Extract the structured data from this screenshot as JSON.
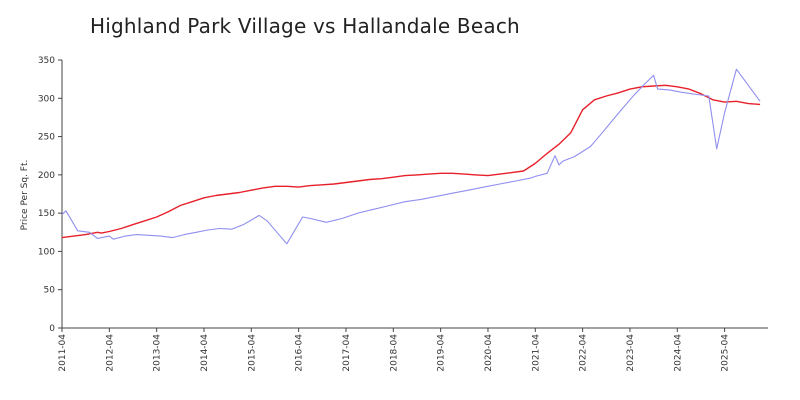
{
  "chart_data": {
    "type": "line",
    "title": "Highland Park Village vs Hallandale Beach",
    "xlabel": "",
    "ylabel": "Price Per Sq. Ft.",
    "ylim": [
      0,
      350
    ],
    "yticks": [
      0,
      50,
      100,
      150,
      200,
      250,
      300,
      350
    ],
    "xlim": [
      "2011-04",
      "2026-03"
    ],
    "xticks": [
      "2011-04",
      "2012-04",
      "2013-04",
      "2014-04",
      "2015-04",
      "2016-04",
      "2017-04",
      "2018-04",
      "2019-04",
      "2020-04",
      "2021-04",
      "2022-04",
      "2023-04",
      "2024-04",
      "2025-04"
    ],
    "grid": false,
    "legend": "none",
    "series": [
      {
        "color": "#e8202a",
        "points": [
          [
            "2011-04",
            118
          ],
          [
            "2011-10",
            122
          ],
          [
            "2012-01",
            125
          ],
          [
            "2012-02",
            124
          ],
          [
            "2012-04",
            126
          ],
          [
            "2012-07",
            130
          ],
          [
            "2012-10",
            135
          ],
          [
            "2013-01",
            140
          ],
          [
            "2013-04",
            145
          ],
          [
            "2013-07",
            152
          ],
          [
            "2013-10",
            160
          ],
          [
            "2014-01",
            165
          ],
          [
            "2014-04",
            170
          ],
          [
            "2014-07",
            173
          ],
          [
            "2014-10",
            175
          ],
          [
            "2015-01",
            177
          ],
          [
            "2015-04",
            180
          ],
          [
            "2015-07",
            183
          ],
          [
            "2015-10",
            185
          ],
          [
            "2016-01",
            185
          ],
          [
            "2016-04",
            184
          ],
          [
            "2016-07",
            186
          ],
          [
            "2016-10",
            187
          ],
          [
            "2017-01",
            188
          ],
          [
            "2017-04",
            190
          ],
          [
            "2017-07",
            192
          ],
          [
            "2017-10",
            194
          ],
          [
            "2018-01",
            195
          ],
          [
            "2018-04",
            197
          ],
          [
            "2018-07",
            199
          ],
          [
            "2018-10",
            200
          ],
          [
            "2019-01",
            201
          ],
          [
            "2019-04",
            202
          ],
          [
            "2019-07",
            202
          ],
          [
            "2019-10",
            201
          ],
          [
            "2020-01",
            200
          ],
          [
            "2020-04",
            199
          ],
          [
            "2020-07",
            201
          ],
          [
            "2020-10",
            203
          ],
          [
            "2021-01",
            205
          ],
          [
            "2021-04",
            215
          ],
          [
            "2021-07",
            228
          ],
          [
            "2021-10",
            240
          ],
          [
            "2022-01",
            255
          ],
          [
            "2022-04",
            285
          ],
          [
            "2022-07",
            298
          ],
          [
            "2022-10",
            303
          ],
          [
            "2023-01",
            307
          ],
          [
            "2023-04",
            312
          ],
          [
            "2023-07",
            315
          ],
          [
            "2023-10",
            316
          ],
          [
            "2024-01",
            317
          ],
          [
            "2024-04",
            315
          ],
          [
            "2024-07",
            312
          ],
          [
            "2024-10",
            306
          ],
          [
            "2025-01",
            298
          ],
          [
            "2025-04",
            295
          ],
          [
            "2025-07",
            296
          ],
          [
            "2025-10",
            293
          ],
          [
            "2026-01",
            292
          ]
        ]
      },
      {
        "color": "#8f8ff0",
        "points": [
          [
            "2011-04",
            148
          ],
          [
            "2011-05",
            153
          ],
          [
            "2011-08",
            127
          ],
          [
            "2011-11",
            125
          ],
          [
            "2012-01",
            117
          ],
          [
            "2012-04",
            120
          ],
          [
            "2012-05",
            116
          ],
          [
            "2012-08",
            120
          ],
          [
            "2012-11",
            122
          ],
          [
            "2013-02",
            121
          ],
          [
            "2013-05",
            120
          ],
          [
            "2013-08",
            118
          ],
          [
            "2013-11",
            122
          ],
          [
            "2014-02",
            125
          ],
          [
            "2014-05",
            128
          ],
          [
            "2014-08",
            130
          ],
          [
            "2014-11",
            129
          ],
          [
            "2015-02",
            135
          ],
          [
            "2015-06",
            147
          ],
          [
            "2015-08",
            140
          ],
          [
            "2016-01",
            110
          ],
          [
            "2016-05",
            145
          ],
          [
            "2016-07",
            143
          ],
          [
            "2016-11",
            138
          ],
          [
            "2017-03",
            143
          ],
          [
            "2017-07",
            150
          ],
          [
            "2017-11",
            155
          ],
          [
            "2018-03",
            160
          ],
          [
            "2018-07",
            165
          ],
          [
            "2018-11",
            168
          ],
          [
            "2019-03",
            172
          ],
          [
            "2019-07",
            176
          ],
          [
            "2019-11",
            180
          ],
          [
            "2020-03",
            184
          ],
          [
            "2020-07",
            188
          ],
          [
            "2020-11",
            192
          ],
          [
            "2021-03",
            196
          ],
          [
            "2021-04",
            198
          ],
          [
            "2021-07",
            202
          ],
          [
            "2021-09",
            225
          ],
          [
            "2021-10",
            213
          ],
          [
            "2021-11",
            218
          ],
          [
            "2022-02",
            224
          ],
          [
            "2022-06",
            237
          ],
          [
            "2022-09",
            255
          ],
          [
            "2023-01",
            280
          ],
          [
            "2023-05",
            304
          ],
          [
            "2023-08",
            320
          ],
          [
            "2023-10",
            330
          ],
          [
            "2023-11",
            312
          ],
          [
            "2024-02",
            311
          ],
          [
            "2024-05",
            308
          ],
          [
            "2024-09",
            305
          ],
          [
            "2024-12",
            303
          ],
          [
            "2025-02",
            234
          ],
          [
            "2025-04",
            281
          ],
          [
            "2025-07",
            338
          ],
          [
            "2026-01",
            296
          ]
        ]
      }
    ]
  }
}
